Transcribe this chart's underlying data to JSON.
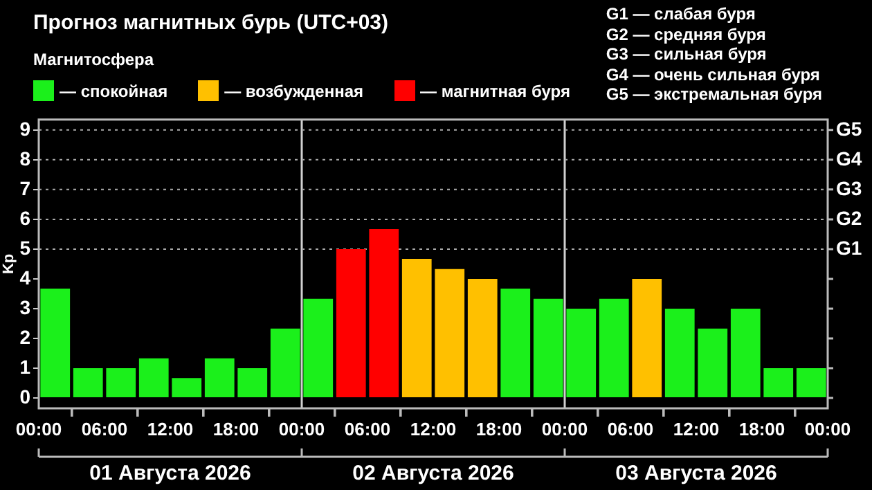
{
  "chart_data": {
    "type": "bar",
    "title": "Прогноз магнитных бурь (UTC+03)",
    "legend_title": "Магнитосфера",
    "ylabel": "Kp",
    "x": [
      "2026-08-01T01:30",
      "2026-08-01T04:30",
      "2026-08-01T07:30",
      "2026-08-01T10:30",
      "2026-08-01T13:30",
      "2026-08-01T16:30",
      "2026-08-01T19:30",
      "2026-08-01T22:30",
      "2026-08-02T01:30",
      "2026-08-02T04:30",
      "2026-08-02T07:30",
      "2026-08-02T10:30",
      "2026-08-02T13:30",
      "2026-08-02T16:30",
      "2026-08-02T19:30",
      "2026-08-02T22:30",
      "2026-08-03T01:30",
      "2026-08-03T04:30",
      "2026-08-03T07:30",
      "2026-08-03T10:30",
      "2026-08-03T13:30",
      "2026-08-03T16:30",
      "2026-08-03T19:30",
      "2026-08-03T22:30"
    ],
    "series": [
      {
        "name": "— спокойная",
        "color": "#1bf01b",
        "values": [
          3.67,
          1,
          1,
          1.33,
          0.67,
          1.33,
          1,
          2.33,
          3.33,
          null,
          null,
          null,
          null,
          null,
          3.67,
          3.33,
          3,
          3.33,
          null,
          3,
          2.33,
          3,
          1,
          1
        ]
      },
      {
        "name": "— возбужденная",
        "color": "#ffc000",
        "values": [
          null,
          null,
          null,
          null,
          null,
          null,
          null,
          null,
          null,
          null,
          null,
          4.67,
          4.33,
          4,
          null,
          null,
          null,
          null,
          4,
          null,
          null,
          null,
          null,
          null
        ]
      },
      {
        "name": "— магнитная буря",
        "color": "#ff0000",
        "values": [
          null,
          null,
          null,
          null,
          null,
          null,
          null,
          null,
          null,
          5,
          5.67,
          null,
          null,
          null,
          null,
          null,
          null,
          null,
          null,
          null,
          null,
          null,
          null,
          null
        ]
      }
    ],
    "xlim": [
      "2026-08-01T00:00",
      "2026-08-04T00:00"
    ],
    "xticks": [
      {
        "value": "2026-08-01T00:00",
        "label": "00:00"
      },
      {
        "value": "2026-08-01T06:00",
        "label": "06:00"
      },
      {
        "value": "2026-08-01T12:00",
        "label": "12:00"
      },
      {
        "value": "2026-08-01T18:00",
        "label": "18:00"
      },
      {
        "value": "2026-08-02T00:00",
        "label": "00:00"
      },
      {
        "value": "2026-08-02T06:00",
        "label": "06:00"
      },
      {
        "value": "2026-08-02T12:00",
        "label": "12:00"
      },
      {
        "value": "2026-08-02T18:00",
        "label": "18:00"
      },
      {
        "value": "2026-08-03T00:00",
        "label": "00:00"
      },
      {
        "value": "2026-08-03T06:00",
        "label": "06:00"
      },
      {
        "value": "2026-08-03T12:00",
        "label": "12:00"
      },
      {
        "value": "2026-08-03T18:00",
        "label": "18:00"
      },
      {
        "value": "2026-08-04T00:00",
        "label": "00:00"
      }
    ],
    "ylim": [
      -0.35,
      9.35
    ],
    "yticks": [
      0,
      1,
      2,
      3,
      4,
      5,
      6,
      7,
      8,
      9
    ],
    "legend": "top left",
    "ref_lines": [
      {
        "axis": "x",
        "value": "2026-08-02T00:00",
        "color": "#d0d0d0",
        "line_style": "solid"
      },
      {
        "axis": "x",
        "value": "2026-08-03T00:00",
        "color": "#d0d0d0",
        "line_style": "solid"
      },
      {
        "axis": "y",
        "value": 5,
        "label": "G1",
        "color": "#aaaaaa",
        "line_style": "dotted"
      },
      {
        "axis": "y",
        "value": 6,
        "label": "G2",
        "color": "#aaaaaa",
        "line_style": "dotted"
      },
      {
        "axis": "y",
        "value": 7,
        "label": "G3",
        "color": "#aaaaaa",
        "line_style": "dotted"
      },
      {
        "axis": "y",
        "value": 8,
        "label": "G4",
        "color": "#aaaaaa",
        "line_style": "dotted"
      },
      {
        "axis": "y",
        "value": 9,
        "label": "G5",
        "color": "#aaaaaa",
        "line_style": "dotted"
      }
    ],
    "annotations": [
      "01 Августа 2026",
      "02 Августа 2026",
      "03 Августа 2026",
      "G1 — слабая буря",
      "G2 — средняя буря",
      "G3 — сильная буря",
      "G4 — очень сильная буря",
      "G5 — экстремальная буря"
    ]
  }
}
